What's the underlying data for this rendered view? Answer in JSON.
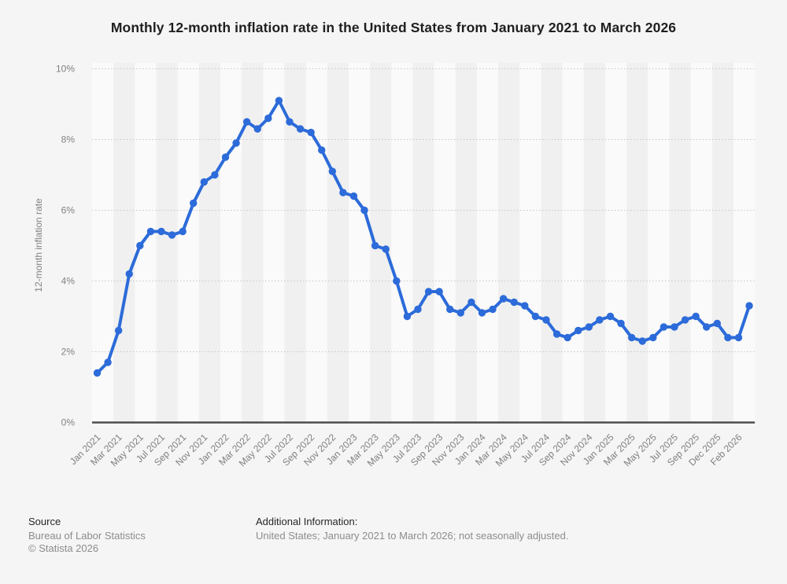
{
  "page": {
    "background_color": "#f5f5f5"
  },
  "header": {
    "title": "Monthly 12-month inflation rate in the United States from January 2021 to March 2026"
  },
  "chart_data": {
    "type": "line",
    "title": "Monthly 12-month inflation rate in the United States from January 2021 to March 2026",
    "xlabel": "",
    "ylabel": "12-month inflation rate",
    "ylim": [
      0,
      10
    ],
    "y_tick_labels": [
      "0%",
      "2%",
      "4%",
      "6%",
      "8%",
      "10%"
    ],
    "y_tick_values": [
      0,
      2,
      4,
      6,
      8,
      10
    ],
    "grid": "horizontal-dotted",
    "legend": "none",
    "line_color": "#2c6bd9",
    "marker": "circle",
    "categories": [
      "Jan 2021",
      "Feb 2021",
      "Mar 2021",
      "Apr 2021",
      "May 2021",
      "Jun 2021",
      "Jul 2021",
      "Aug 2021",
      "Sep 2021",
      "Oct 2021",
      "Nov 2021",
      "Dec 2021",
      "Jan 2022",
      "Feb 2022",
      "Mar 2022",
      "Apr 2022",
      "May 2022",
      "Jun 2022",
      "Jul 2022",
      "Aug 2022",
      "Sep 2022",
      "Oct 2022",
      "Nov 2022",
      "Dec 2022",
      "Jan 2023",
      "Feb 2023",
      "Mar 2023",
      "Apr 2023",
      "May 2023",
      "Jun 2023",
      "Jul 2023",
      "Aug 2023",
      "Sep 2023",
      "Oct 2023",
      "Nov 2023",
      "Dec 2023",
      "Jan 2024",
      "Feb 2024",
      "Mar 2024",
      "Apr 2024",
      "May 2024",
      "Jun 2024",
      "Jul 2024",
      "Aug 2024",
      "Sep 2024",
      "Oct 2024",
      "Nov 2024",
      "Dec 2024",
      "Jan 2025",
      "Feb 2025",
      "Mar 2025",
      "Apr 2025",
      "May 2025",
      "Jun 2025",
      "Jul 2025",
      "Aug 2025",
      "Sep 2025",
      "Nov 2025",
      "Dec 2025",
      "Jan 2026",
      "Feb 2026",
      "Mar 2026"
    ],
    "values": [
      1.4,
      1.7,
      2.6,
      4.2,
      5.0,
      5.4,
      5.4,
      5.3,
      5.4,
      6.2,
      6.8,
      7.0,
      7.5,
      7.9,
      8.5,
      8.3,
      8.6,
      9.1,
      8.5,
      8.3,
      8.2,
      7.7,
      7.1,
      6.5,
      6.4,
      6.0,
      5.0,
      4.9,
      4.0,
      3.0,
      3.2,
      3.7,
      3.7,
      3.2,
      3.1,
      3.4,
      3.1,
      3.2,
      3.5,
      3.4,
      3.3,
      3.0,
      2.9,
      2.5,
      2.4,
      2.6,
      2.7,
      2.9,
      3.0,
      2.8,
      2.4,
      2.3,
      2.4,
      2.7,
      2.7,
      2.9,
      3.0,
      2.7,
      2.8,
      2.4,
      2.4,
      3.3
    ],
    "x_tick_labels": [
      "Jan 2021",
      "Mar 2021",
      "May 2021",
      "Jul 2021",
      "Sep 2021",
      "Nov 2021",
      "Jan 2022",
      "Mar 2022",
      "May 2022",
      "Jul 2022",
      "Sep 2022",
      "Nov 2022",
      "Jan 2023",
      "Mar 2023",
      "May 2023",
      "Jul 2023",
      "Sep 2023",
      "Nov 2023",
      "Jan 2024",
      "Mar 2024",
      "May 2024",
      "Jul 2024",
      "Sep 2024",
      "Nov 2024",
      "Jan 2025",
      "Mar 2025",
      "May 2025",
      "Jul 2025",
      "Sep 2025",
      "Dec 2025",
      "Feb 2026"
    ],
    "x_tick_every_n_points": 2
  },
  "footer": {
    "source_heading": "Source",
    "source_name": "Bureau of Labor Statistics",
    "copyright": "© Statista 2026",
    "additional_info_heading": "Additional Information:",
    "additional_info": "United States; January 2021 to March 2026; not seasonally adjusted."
  }
}
